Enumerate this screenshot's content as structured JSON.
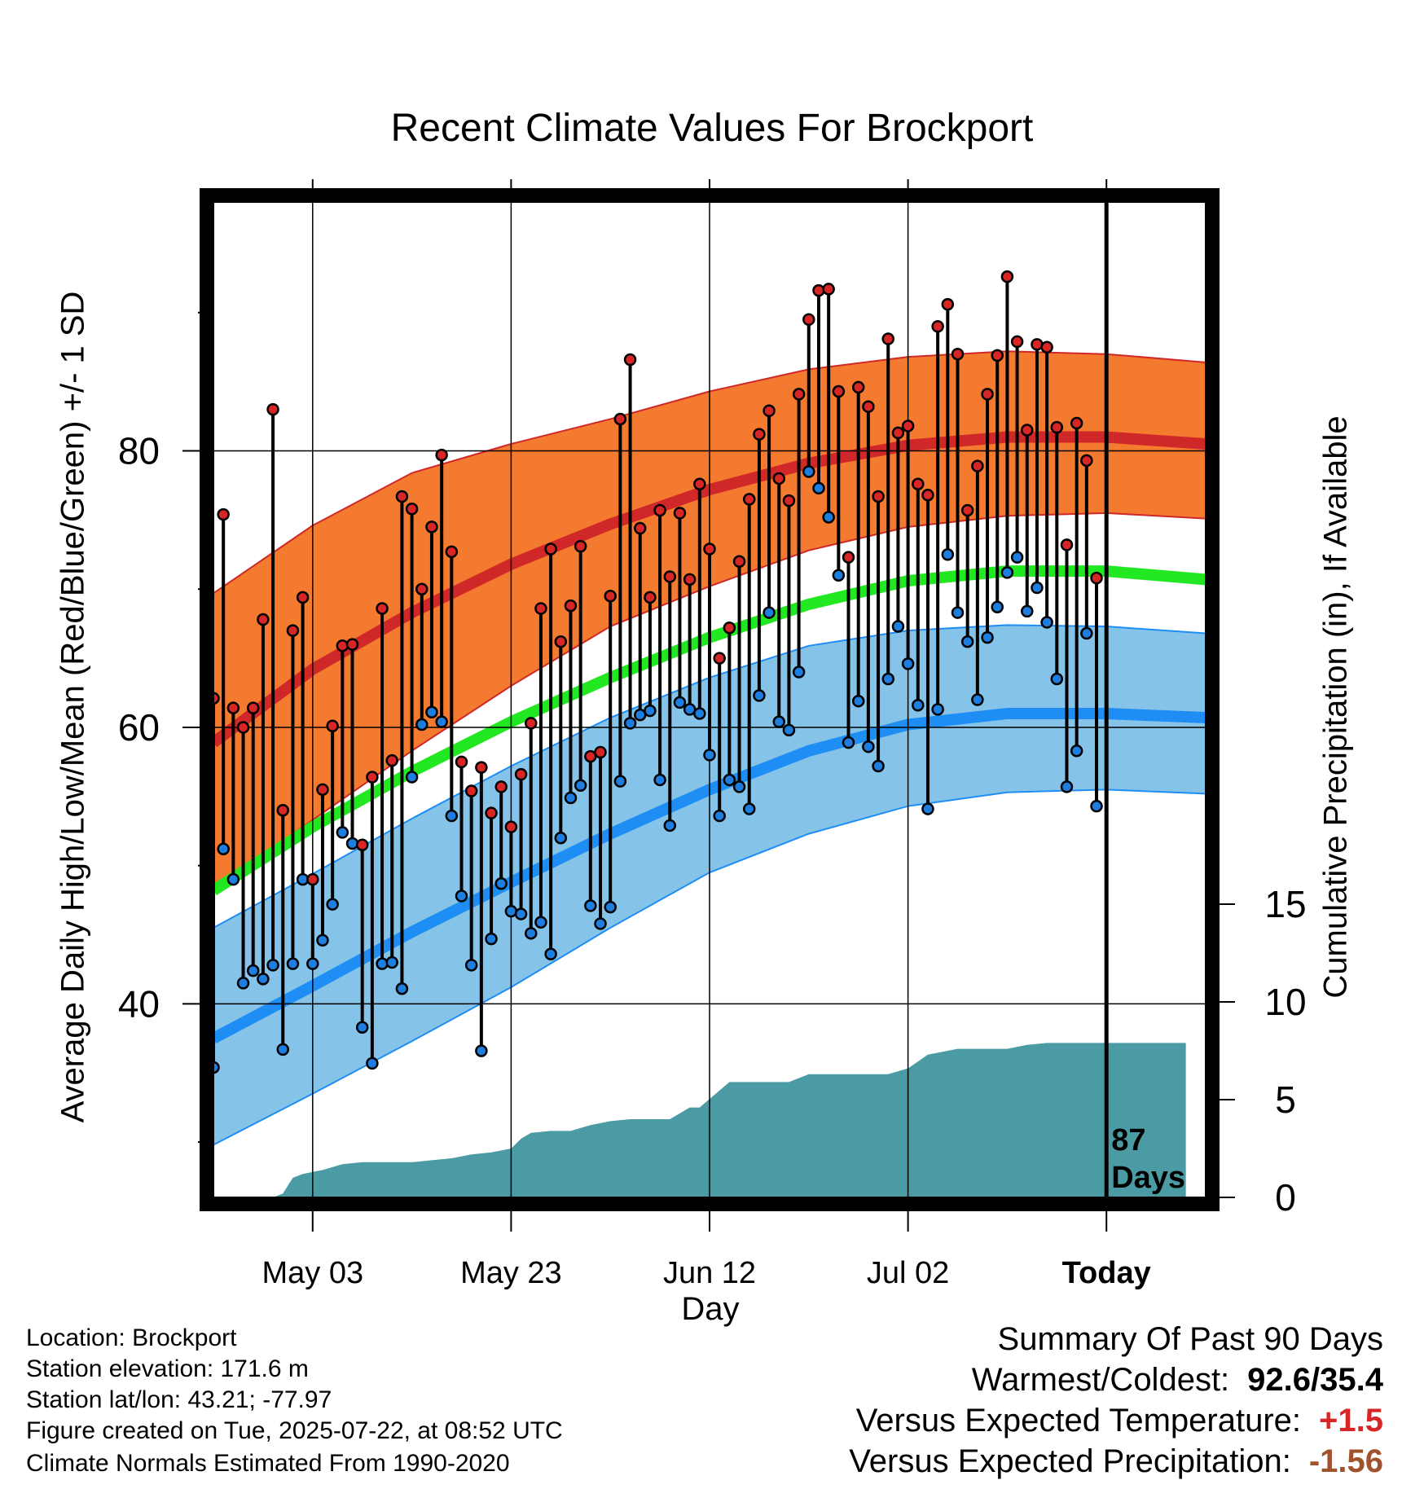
{
  "chart_data": {
    "type": "line",
    "title": "Recent Climate Values For Brockport",
    "xlabel": "Day",
    "ylabel_left": "Average Daily High/Low/Mean (Red/Blue/Green) +/- 1 SD",
    "ylabel_right": "Cumulative Precipitation (in), If Available",
    "x_tick_labels": [
      "May 03",
      "May 23",
      "Jun 12",
      "Jul 02",
      "Today"
    ],
    "y_left_ticks": [
      40,
      60,
      80
    ],
    "y_left_range": [
      26,
      98
    ],
    "y_right_ticks": [
      0,
      5,
      10,
      15
    ],
    "y_right_range": [
      0,
      15
    ],
    "x_range_days_before_today": [
      -90,
      10
    ],
    "today_marker": {
      "line_label_1": "87",
      "line_label_2": "Days"
    },
    "colors": {
      "high_band": "#f47a30",
      "high_mean": "#d02828",
      "low_band": "#86c3e8",
      "low_mean": "#1e8ef5",
      "mean": "#22e822",
      "precip": "#4a9ba4",
      "high_marker": "#d82626",
      "low_marker": "#1e7ee0"
    },
    "normals": {
      "days": [
        -90,
        -80,
        -70,
        -60,
        -50,
        -40,
        -30,
        -20,
        -10,
        0,
        10
      ],
      "high_mean": [
        58.9,
        64.2,
        68.3,
        71.8,
        74.7,
        77.2,
        79.1,
        80.4,
        81.0,
        81.0,
        80.5
      ],
      "high_sd_upper": [
        69.7,
        74.6,
        78.4,
        80.5,
        82.3,
        84.3,
        85.9,
        86.8,
        87.2,
        87.0,
        86.4
      ],
      "high_sd_lower": [
        48.3,
        53.3,
        58.3,
        63.0,
        67.3,
        70.2,
        72.8,
        74.5,
        75.3,
        75.5,
        75.1
      ],
      "mean": [
        48.2,
        52.8,
        56.8,
        60.4,
        63.6,
        66.5,
        68.9,
        70.6,
        71.3,
        71.3,
        70.7
      ],
      "low_mean": [
        37.5,
        41.3,
        45.2,
        48.8,
        52.3,
        55.5,
        58.3,
        60.2,
        61.0,
        61.0,
        60.7
      ],
      "low_sd_upper": [
        45.5,
        49.4,
        53.4,
        57.2,
        60.7,
        63.6,
        65.9,
        67.0,
        67.4,
        67.3,
        66.8
      ],
      "low_sd_lower": [
        29.8,
        33.5,
        37.3,
        41.2,
        45.5,
        49.5,
        52.3,
        54.3,
        55.3,
        55.5,
        55.2
      ]
    },
    "daily": {
      "days": [
        -90,
        -89,
        -88,
        -87,
        -86,
        -85,
        -84,
        -83,
        -82,
        -81,
        -80,
        -79,
        -78,
        -77,
        -76,
        -75,
        -74,
        -73,
        -72,
        -71,
        -70,
        -69,
        -68,
        -67,
        -66,
        -65,
        -64,
        -63,
        -62,
        -61,
        -60,
        -59,
        -58,
        -57,
        -56,
        -55,
        -54,
        -53,
        -52,
        -51,
        -50,
        -49,
        -48,
        -47,
        -46,
        -45,
        -44,
        -43,
        -42,
        -41,
        -40,
        -39,
        -38,
        -37,
        -36,
        -35,
        -34,
        -33,
        -32,
        -31,
        -30,
        -29,
        -28,
        -27,
        -26,
        -25,
        -24,
        -23,
        -22,
        -21,
        -20,
        -19,
        -18,
        -17,
        -16,
        -15,
        -14,
        -13,
        -12,
        -11,
        -10,
        -9,
        -8,
        -7,
        -6,
        -5,
        -4,
        -3,
        -2,
        -1
      ],
      "high": [
        62.1,
        75.4,
        61.4,
        60.0,
        61.4,
        67.8,
        83.0,
        54.0,
        67.0,
        69.4,
        49.0,
        55.5,
        60.1,
        65.9,
        66.0,
        51.5,
        56.4,
        68.6,
        57.6,
        76.7,
        75.8,
        70.0,
        74.5,
        79.7,
        72.7,
        57.5,
        55.4,
        57.1,
        53.8,
        55.7,
        52.8,
        56.6,
        60.3,
        68.6,
        72.9,
        66.2,
        68.8,
        73.1,
        57.9,
        58.2,
        69.5,
        82.3,
        86.6,
        74.4,
        69.4,
        75.7,
        70.9,
        75.5,
        70.7,
        77.6,
        72.9,
        65.0,
        67.2,
        72.0,
        76.5,
        81.2,
        82.9,
        78.0,
        76.4,
        84.1,
        89.5,
        91.6,
        91.7,
        84.3,
        72.3,
        84.6,
        83.2,
        76.7,
        88.1,
        81.3,
        81.8,
        77.6,
        76.8,
        89.0,
        90.6,
        87.0,
        75.7,
        78.9,
        84.1,
        86.9,
        92.6,
        87.9,
        81.5,
        87.7,
        87.5,
        81.7,
        73.2,
        82.0,
        79.3,
        70.8
      ],
      "low": [
        35.4,
        51.2,
        49.0,
        41.5,
        42.4,
        41.8,
        42.8,
        36.7,
        42.9,
        49.0,
        42.9,
        44.6,
        47.2,
        52.4,
        51.6,
        38.3,
        35.7,
        42.9,
        43.0,
        41.1,
        56.4,
        60.2,
        61.1,
        60.4,
        53.6,
        47.8,
        42.8,
        36.6,
        44.7,
        48.7,
        46.7,
        46.5,
        45.1,
        45.9,
        43.6,
        52.0,
        54.9,
        55.8,
        47.1,
        45.8,
        47.0,
        56.1,
        60.3,
        60.9,
        61.2,
        56.2,
        52.9,
        61.8,
        61.3,
        61.0,
        58.0,
        53.6,
        56.2,
        55.7,
        54.1,
        62.3,
        68.3,
        60.4,
        59.8,
        64.0,
        78.5,
        77.3,
        75.2,
        71.0,
        58.9,
        61.9,
        58.6,
        57.2,
        63.5,
        67.3,
        64.6,
        61.6,
        54.1,
        61.3,
        72.5,
        68.3,
        66.2,
        62.0,
        66.5,
        68.7,
        71.2,
        72.3,
        68.4,
        70.1,
        67.6,
        63.5,
        55.7,
        58.3,
        66.8,
        54.3
      ]
    },
    "precip_cumulative": {
      "days": [
        -90,
        -84,
        -83,
        -82,
        -81,
        -79,
        -77,
        -75,
        -70,
        -68,
        -66,
        -64,
        -62,
        -60,
        -59,
        -58,
        -56,
        -54,
        -52,
        -50,
        -48,
        -46,
        -44,
        -42,
        -41,
        -38,
        -36,
        -34,
        -32,
        -30,
        -28,
        -26,
        -24,
        -22,
        -20,
        -18,
        -15,
        -12,
        -10,
        -8,
        -6,
        -4,
        -2,
        0,
        8
      ],
      "values": [
        0,
        0,
        0.2,
        1.0,
        1.2,
        1.4,
        1.7,
        1.8,
        1.8,
        1.9,
        2.0,
        2.2,
        2.3,
        2.5,
        3.0,
        3.3,
        3.4,
        3.4,
        3.7,
        3.9,
        4.0,
        4.0,
        4.0,
        4.6,
        4.6,
        5.9,
        5.9,
        5.9,
        5.9,
        6.3,
        6.3,
        6.3,
        6.3,
        6.3,
        6.6,
        7.3,
        7.6,
        7.6,
        7.6,
        7.8,
        7.9,
        7.9,
        7.9,
        7.9,
        7.9
      ]
    }
  },
  "info": {
    "location": "Location: Brockport",
    "elevation": "Station elevation: 171.6 m",
    "latlon": "Station lat/lon: 43.21; -77.97",
    "created": "Figure created on Tue, 2025-07-22, at 08:52 UTC",
    "normals": "Climate Normals Estimated From 1990-2020"
  },
  "summary": {
    "heading": "Summary Of Past 90 Days",
    "warm_cold_label": "Warmest/Coldest:",
    "warm_cold_value": "92.6/35.4",
    "temp_label": "Versus Expected Temperature:",
    "temp_value": "+1.5",
    "temp_color": "#d82626",
    "precip_label": "Versus Expected Precipitation:",
    "precip_value": "-1.56",
    "precip_color": "#a0522d"
  }
}
